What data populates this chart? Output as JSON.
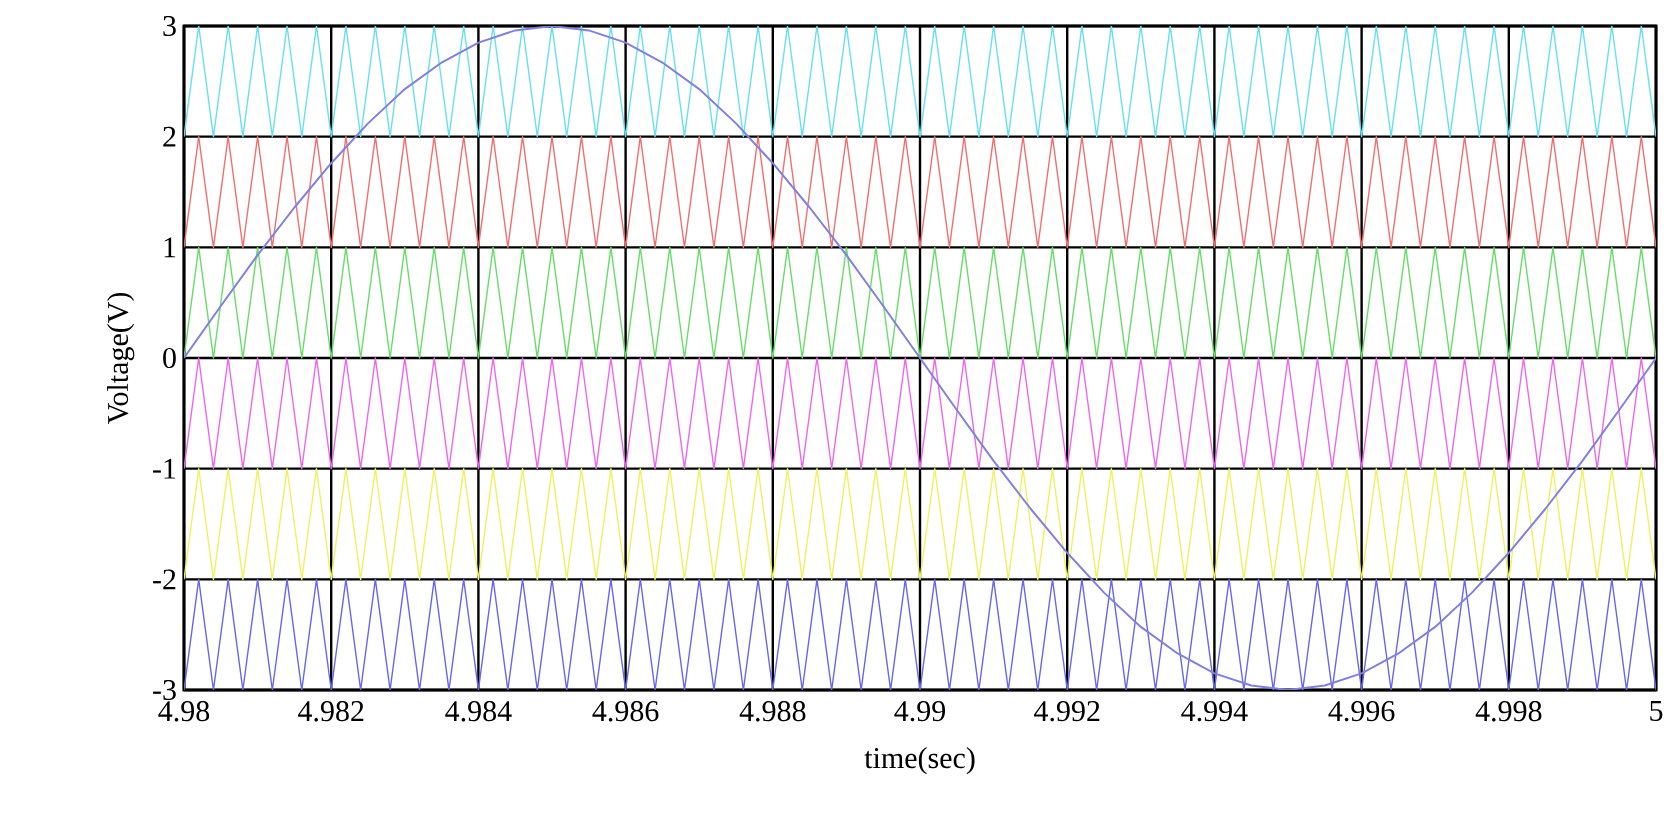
{
  "chart_data": {
    "type": "line",
    "xlabel": "time(sec)",
    "ylabel": "Voltage(V)",
    "x": [
      4.98,
      4.9802,
      4.9804,
      4.9806,
      4.9808,
      4.981,
      4.9812,
      4.9814,
      4.9816,
      4.9818,
      4.982,
      4.9822,
      4.9824,
      4.9826,
      4.9828,
      4.983,
      4.9832,
      4.9834,
      4.9836,
      4.9838,
      4.984,
      4.9842,
      4.9844,
      4.9846,
      4.9848,
      4.985,
      4.9852,
      4.9854,
      4.9856,
      4.9858,
      4.986,
      4.9862,
      4.9864,
      4.9866,
      4.9868,
      4.987,
      4.9872,
      4.9874,
      4.9876,
      4.9878,
      4.988,
      4.9882,
      4.9884,
      4.9886,
      4.9888,
      4.989,
      4.9892,
      4.9894,
      4.9896,
      4.9898,
      4.99,
      4.9902,
      4.9904,
      4.9906,
      4.9908,
      4.991,
      4.9912,
      4.9914,
      4.9916,
      4.9918,
      4.992,
      4.9922,
      4.9924,
      4.9926,
      4.9928,
      4.993,
      4.9932,
      4.9934,
      4.9936,
      4.9938,
      4.994,
      4.9942,
      4.9944,
      4.9946,
      4.9948,
      4.995,
      4.9952,
      4.9954,
      4.9956,
      4.9958,
      4.996,
      4.9962,
      4.9964,
      4.9966,
      4.9968,
      4.997,
      4.9972,
      4.9974,
      4.9976,
      4.9978,
      4.998,
      4.9982,
      4.9984,
      4.9986,
      4.9988,
      4.999,
      4.9992,
      4.9994,
      4.9996,
      4.9998,
      5
    ],
    "series": [
      {
        "color": "#66e0f0",
        "values": [
          2,
          3,
          2,
          3,
          2,
          3,
          2,
          3,
          2,
          3,
          2,
          3,
          2,
          3,
          2,
          3,
          2,
          3,
          2,
          3,
          2,
          3,
          2,
          3,
          2,
          3,
          2,
          3,
          2,
          3,
          2,
          3,
          2,
          3,
          2,
          3,
          2,
          3,
          2,
          3,
          2,
          3,
          2,
          3,
          2,
          3,
          2,
          3,
          2,
          3,
          2,
          3,
          2,
          3,
          2,
          3,
          2,
          3,
          2,
          3,
          2,
          3,
          2,
          3,
          2,
          3,
          2,
          3,
          2,
          3,
          2,
          3,
          2,
          3,
          2,
          3,
          2,
          3,
          2,
          3,
          2,
          3,
          2,
          3,
          2,
          3,
          2,
          3,
          2,
          3,
          2,
          3,
          2,
          3,
          2,
          3,
          2,
          3,
          2,
          3,
          2
        ]
      },
      {
        "color": "#f07070",
        "values": [
          1,
          2,
          1,
          2,
          1,
          2,
          1,
          2,
          1,
          2,
          1,
          2,
          1,
          2,
          1,
          2,
          1,
          2,
          1,
          2,
          1,
          2,
          1,
          2,
          1,
          2,
          1,
          2,
          1,
          2,
          1,
          2,
          1,
          2,
          1,
          2,
          1,
          2,
          1,
          2,
          1,
          2,
          1,
          2,
          1,
          2,
          1,
          2,
          1,
          2,
          1,
          2,
          1,
          2,
          1,
          2,
          1,
          2,
          1,
          2,
          1,
          2,
          1,
          2,
          1,
          2,
          1,
          2,
          1,
          2,
          1,
          2,
          1,
          2,
          1,
          2,
          1,
          2,
          1,
          2,
          1,
          2,
          1,
          2,
          1,
          2,
          1,
          2,
          1,
          2,
          1,
          2,
          1,
          2,
          1,
          2,
          1,
          2,
          1,
          2,
          1
        ]
      },
      {
        "color": "#66dd66",
        "values": [
          0,
          1,
          0,
          1,
          0,
          1,
          0,
          1,
          0,
          1,
          0,
          1,
          0,
          1,
          0,
          1,
          0,
          1,
          0,
          1,
          0,
          1,
          0,
          1,
          0,
          1,
          0,
          1,
          0,
          1,
          0,
          1,
          0,
          1,
          0,
          1,
          0,
          1,
          0,
          1,
          0,
          1,
          0,
          1,
          0,
          1,
          0,
          1,
          0,
          1,
          0,
          1,
          0,
          1,
          0,
          1,
          0,
          1,
          0,
          1,
          0,
          1,
          0,
          1,
          0,
          1,
          0,
          1,
          0,
          1,
          0,
          1,
          0,
          1,
          0,
          1,
          0,
          1,
          0,
          1,
          0,
          1,
          0,
          1,
          0,
          1,
          0,
          1,
          0,
          1,
          0,
          1,
          0,
          1,
          0,
          1,
          0,
          1,
          0,
          1,
          0
        ]
      },
      {
        "color": "#ee66ee",
        "values": [
          -1,
          0,
          -1,
          0,
          -1,
          0,
          -1,
          0,
          -1,
          0,
          -1,
          0,
          -1,
          0,
          -1,
          0,
          -1,
          0,
          -1,
          0,
          -1,
          0,
          -1,
          0,
          -1,
          0,
          -1,
          0,
          -1,
          0,
          -1,
          0,
          -1,
          0,
          -1,
          0,
          -1,
          0,
          -1,
          0,
          -1,
          0,
          -1,
          0,
          -1,
          0,
          -1,
          0,
          -1,
          0,
          -1,
          0,
          -1,
          0,
          -1,
          0,
          -1,
          0,
          -1,
          0,
          -1,
          0,
          -1,
          0,
          -1,
          0,
          -1,
          0,
          -1,
          0,
          -1,
          0,
          -1,
          0,
          -1,
          0,
          -1,
          0,
          -1,
          0,
          -1,
          0,
          -1,
          0,
          -1,
          0,
          -1,
          0,
          -1,
          0,
          -1,
          0,
          -1,
          0,
          -1,
          0,
          -1,
          0,
          -1,
          0,
          -1
        ]
      },
      {
        "color": "#f0f060",
        "values": [
          -2,
          -1,
          -2,
          -1,
          -2,
          -1,
          -2,
          -1,
          -2,
          -1,
          -2,
          -1,
          -2,
          -1,
          -2,
          -1,
          -2,
          -1,
          -2,
          -1,
          -2,
          -1,
          -2,
          -1,
          -2,
          -1,
          -2,
          -1,
          -2,
          -1,
          -2,
          -1,
          -2,
          -1,
          -2,
          -1,
          -2,
          -1,
          -2,
          -1,
          -2,
          -1,
          -2,
          -1,
          -2,
          -1,
          -2,
          -1,
          -2,
          -1,
          -2,
          -1,
          -2,
          -1,
          -2,
          -1,
          -2,
          -1,
          -2,
          -1,
          -2,
          -1,
          -2,
          -1,
          -2,
          -1,
          -2,
          -1,
          -2,
          -1,
          -2,
          -1,
          -2,
          -1,
          -2,
          -1,
          -2,
          -1,
          -2,
          -1,
          -2,
          -1,
          -2,
          -1,
          -2,
          -1,
          -2,
          -1,
          -2,
          -1,
          -2,
          -1,
          -2,
          -1,
          -2,
          -1,
          -2,
          -1,
          -2,
          -1,
          -2
        ]
      },
      {
        "color": "#6666ee",
        "values": [
          -3,
          -2,
          -3,
          -2,
          -3,
          -2,
          -3,
          -2,
          -3,
          -2,
          -3,
          -2,
          -3,
          -2,
          -3,
          -2,
          -3,
          -2,
          -3,
          -2,
          -3,
          -2,
          -3,
          -2,
          -3,
          -2,
          -3,
          -2,
          -3,
          -2,
          -3,
          -2,
          -3,
          -2,
          -3,
          -2,
          -3,
          -2,
          -3,
          -2,
          -3,
          -2,
          -3,
          -2,
          -3,
          -2,
          -3,
          -2,
          -3,
          -2,
          -3,
          -2,
          -3,
          -2,
          -3,
          -2,
          -3,
          -2,
          -3,
          -2,
          -3,
          -2,
          -3,
          -2,
          -3,
          -2,
          -3,
          -2,
          -3,
          -2,
          -3,
          -2,
          -3,
          -2,
          -3,
          -2,
          -3,
          -2,
          -3,
          -2,
          -3,
          -2,
          -3,
          -2,
          -3,
          -2,
          -3,
          -2,
          -3,
          -2,
          -3,
          -2,
          -3,
          -2,
          -3,
          -2,
          -3,
          -2,
          -3,
          -2,
          -3
        ]
      },
      {
        "color": "#8080e0",
        "x": [
          4.98,
          4.9805,
          4.981,
          4.9815,
          4.982,
          4.9825,
          4.983,
          4.9835,
          4.984,
          4.9845,
          4.985,
          4.9855,
          4.986,
          4.9865,
          4.987,
          4.9875,
          4.988,
          4.9885,
          4.989,
          4.9895,
          4.99,
          4.9905,
          4.991,
          4.9915,
          4.992,
          4.9925,
          4.993,
          4.9935,
          4.994,
          4.9945,
          4.995,
          4.9955,
          4.996,
          4.9965,
          4.997,
          4.9975,
          4.998,
          4.9985,
          4.999,
          4.9995,
          5
        ],
        "values": [
          0,
          0.47,
          0.93,
          1.36,
          1.76,
          2.12,
          2.43,
          2.67,
          2.85,
          2.96,
          3,
          2.96,
          2.85,
          2.67,
          2.43,
          2.12,
          1.76,
          1.36,
          0.93,
          0.47,
          0,
          -0.47,
          -0.93,
          -1.36,
          -1.76,
          -2.12,
          -2.43,
          -2.67,
          -2.85,
          -2.96,
          -3,
          -2.96,
          -2.85,
          -2.67,
          -2.43,
          -2.12,
          -1.76,
          -1.36,
          -0.93,
          -0.47,
          0
        ]
      }
    ],
    "xlim": [
      4.98,
      5
    ],
    "ylim": [
      -3,
      3
    ],
    "xticks": [
      4.98,
      4.982,
      4.984,
      4.986,
      4.988,
      4.99,
      4.992,
      4.994,
      4.996,
      4.998,
      5
    ],
    "yticks": [
      -3,
      -2,
      -1,
      0,
      1,
      2,
      3
    ],
    "grid": true,
    "line_style": "solid"
  }
}
